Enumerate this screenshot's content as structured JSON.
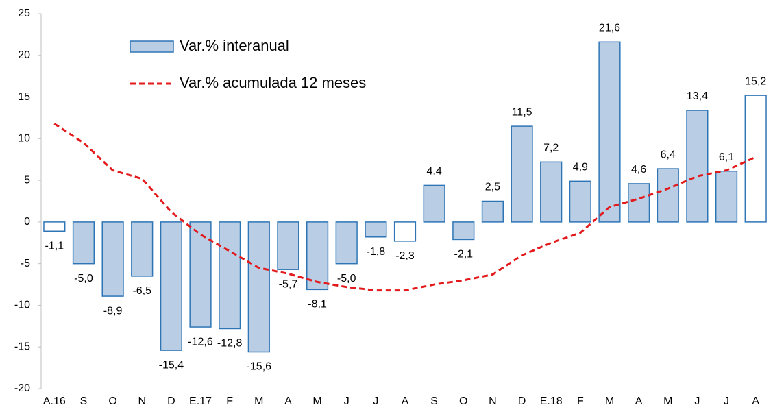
{
  "chart_data": {
    "type": "bar",
    "categories": [
      "A.16",
      "S",
      "O",
      "N",
      "D",
      "E.17",
      "F",
      "M",
      "A",
      "M",
      "J",
      "J",
      "A",
      "S",
      "O",
      "N",
      "D",
      "E.18",
      "F",
      "M",
      "A",
      "M",
      "J",
      "J",
      "A"
    ],
    "series": [
      {
        "name": "Var.% interanual",
        "type": "bar",
        "color": "#b9cde5",
        "stroke": "#2e75b6",
        "colors": [
          "#ffffff",
          "#b9cde5",
          "#b9cde5",
          "#b9cde5",
          "#b9cde5",
          "#b9cde5",
          "#b9cde5",
          "#b9cde5",
          "#b9cde5",
          "#b9cde5",
          "#b9cde5",
          "#b9cde5",
          "#ffffff",
          "#b9cde5",
          "#b9cde5",
          "#b9cde5",
          "#b9cde5",
          "#b9cde5",
          "#b9cde5",
          "#b9cde5",
          "#b9cde5",
          "#b9cde5",
          "#b9cde5",
          "#b9cde5",
          "#ffffff"
        ],
        "values": [
          -1.1,
          -5.0,
          -8.9,
          -6.5,
          -15.4,
          -12.6,
          -12.8,
          -15.6,
          -5.7,
          -8.1,
          -5.0,
          -1.8,
          -2.3,
          4.4,
          -2.1,
          2.5,
          11.5,
          7.2,
          4.9,
          21.6,
          4.6,
          6.4,
          13.4,
          6.1,
          15.2
        ],
        "value_labels": [
          "-1,1",
          "-5,0",
          "-8,9",
          "-6,5",
          "-15,4",
          "-12,6",
          "-12,8",
          "-15,6",
          "-5,7",
          "-8,1",
          "-5,0",
          "-1,8",
          "-2,3",
          "4,4",
          "-2,1",
          "2,5",
          "11,5",
          "7,2",
          "4,9",
          "21,6",
          "4,6",
          "6,4",
          "13,4",
          "6,1",
          "15,2"
        ]
      },
      {
        "name": "Var.% acumulada 12 meses",
        "type": "line",
        "color": "#e31a1c",
        "dashed": true,
        "values": [
          11.8,
          9.5,
          6.2,
          5.2,
          1.2,
          -1.5,
          -3.5,
          -5.5,
          -6.2,
          -7.2,
          -7.8,
          -8.2,
          -8.2,
          -7.5,
          -7.0,
          -6.3,
          -4.0,
          -2.5,
          -1.3,
          1.8,
          2.8,
          4.0,
          5.5,
          6.2,
          7.8
        ]
      }
    ],
    "ylim": [
      -20,
      25
    ],
    "yticks": [
      -20,
      -15,
      -10,
      -5,
      0,
      5,
      10,
      15,
      20,
      25
    ],
    "grid": false,
    "legend": "top-left"
  }
}
